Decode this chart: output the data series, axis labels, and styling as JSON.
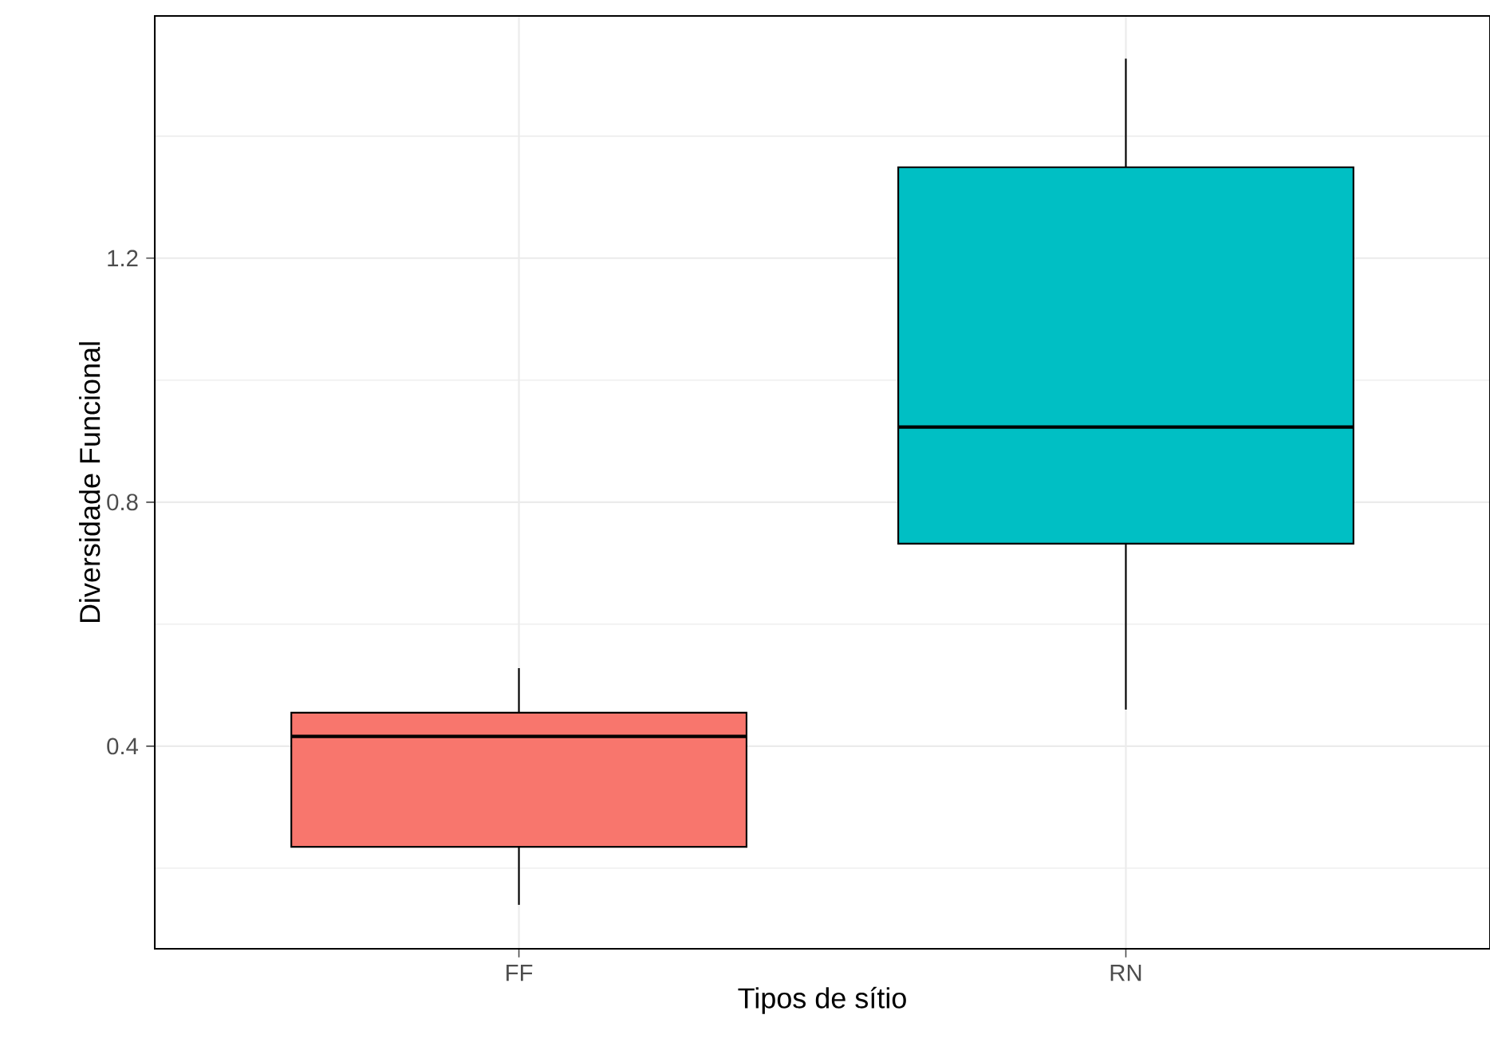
{
  "chart_data": {
    "type": "box",
    "xlabel": "Tipos de sítio",
    "ylabel": "Diversidade Funcional",
    "categories": [
      "FF",
      "RN"
    ],
    "boxes": [
      {
        "low": 0.14,
        "q1": 0.235,
        "median": 0.416,
        "q3": 0.455,
        "high": 0.528
      },
      {
        "low": 0.46,
        "q1": 0.732,
        "median": 0.923,
        "q3": 1.349,
        "high": 1.527
      }
    ],
    "colors": [
      "#f8766d",
      "#00bfc4"
    ],
    "ylim": [
      0.068,
      1.597
    ],
    "yticks": [
      0.4,
      0.8,
      1.2
    ],
    "grid": true
  }
}
